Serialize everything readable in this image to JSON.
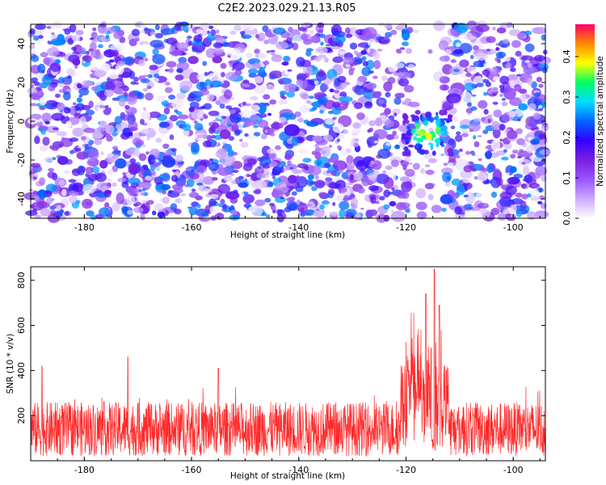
{
  "title": "C2E2.2023.029.21.13.R05",
  "chart_data": [
    {
      "type": "heatmap",
      "xlabel": "Height of straight line (km)",
      "ylabel": "Frequency (Hz)",
      "xlim": [
        -190,
        -94
      ],
      "ylim": [
        -50,
        50
      ],
      "xticks": [
        "-180",
        "-160",
        "-140",
        "-120",
        "-100"
      ],
      "yticks": [
        "40",
        "20",
        "0",
        "-20",
        "-40"
      ],
      "colorbar": {
        "label": "Normalized spectral amplitude",
        "range": [
          0,
          0.48
        ],
        "ticks": [
          "0.4",
          "0.3",
          "0.2",
          "0.1",
          "0.0"
        ],
        "colors": [
          "#ffffff",
          "#ccaaff",
          "#9955ff",
          "#7a1fe0",
          "#3300ff",
          "#0066ff",
          "#00ddff",
          "#00ff66",
          "#ffff00",
          "#ff8800",
          "#ff0066"
        ]
      },
      "features": {
        "quiet_band_km": [
          -120,
          -112
        ],
        "hot_spot_center": [
          -116,
          -6
        ]
      }
    },
    {
      "type": "line",
      "xlabel": "Height of straight line (km)",
      "ylabel": "SNR (10 * v/v)",
      "xlim": [
        -190,
        -94
      ],
      "ylim": [
        0,
        860
      ],
      "xticks": [
        "-180",
        "-160",
        "-140",
        "-120",
        "-100"
      ],
      "yticks": [
        "800",
        "600",
        "400",
        "200"
      ],
      "series": [
        {
          "color": "#ff2a2a",
          "baseline_range": [
            20,
            260
          ],
          "peaks": [
            {
              "x": -187.9,
              "y": 420
            },
            {
              "x": -171.9,
              "y": 460
            },
            {
              "x": -155.0,
              "y": 410
            },
            {
              "x": -119.5,
              "y": 400
            },
            {
              "x": -116.3,
              "y": 740
            },
            {
              "x": -115.3,
              "y": 500
            },
            {
              "x": -114.7,
              "y": 850
            },
            {
              "x": -113.8,
              "y": 690
            },
            {
              "x": -112.5,
              "y": 400
            }
          ]
        }
      ]
    }
  ]
}
